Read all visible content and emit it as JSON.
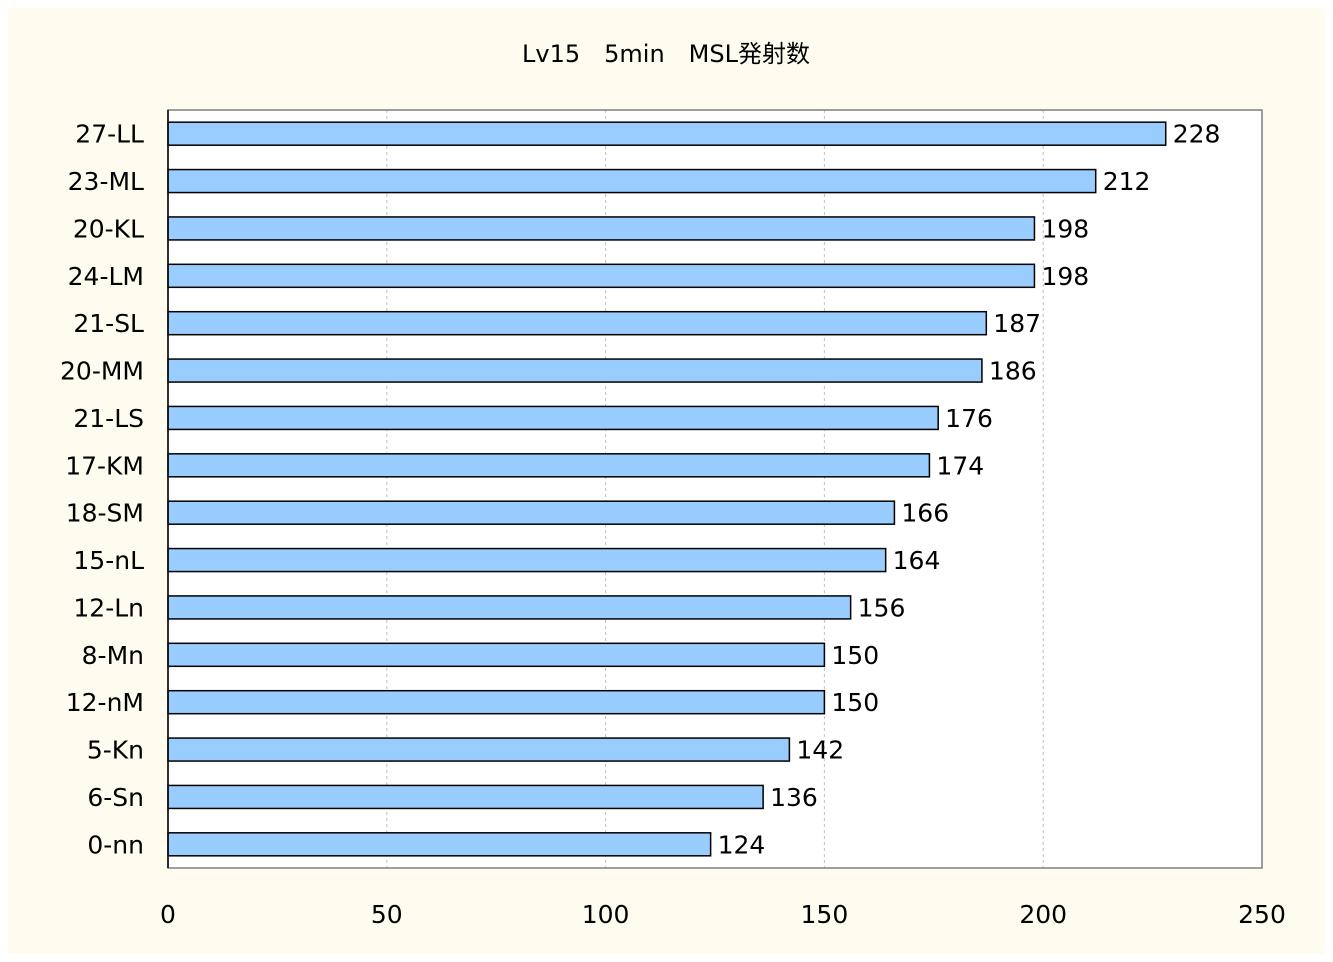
{
  "chart_data": {
    "type": "bar",
    "orientation": "horizontal",
    "title": "Lv15　5min　MSL発射数",
    "categories": [
      "27-LL",
      "23-ML",
      "20-KL",
      "24-LM",
      "21-SL",
      "20-MM",
      "21-LS",
      "17-KM",
      "18-SM",
      "15-nL",
      "12-Ln",
      "8-Mn",
      "12-nM",
      "5-Kn",
      "6-Sn",
      "0-nn"
    ],
    "values": [
      228,
      212,
      198,
      198,
      187,
      186,
      176,
      174,
      166,
      164,
      156,
      150,
      150,
      142,
      136,
      124
    ],
    "xlim": [
      0,
      250
    ],
    "xticks": [
      0,
      50,
      100,
      150,
      200,
      250
    ],
    "grid": "vertical-dashed",
    "legend": "none",
    "colors": {
      "bar_fill": "#99ccff",
      "bar_stroke": "#000000",
      "plot_bg": "#ffffff",
      "chart_bg": "#fffbef",
      "grid": "#c0c0c0"
    }
  }
}
